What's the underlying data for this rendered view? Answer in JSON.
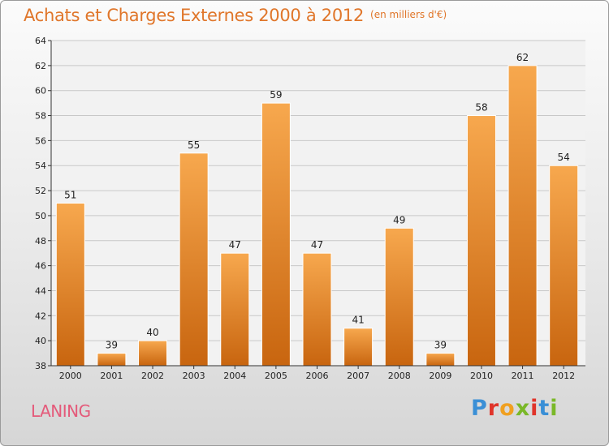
{
  "header": {
    "title": "Achats et Charges Externes 2000 à 2012",
    "unit": "(en milliers d'€)"
  },
  "footer": {
    "commune": "LANING",
    "logo_letters": [
      "P",
      "r",
      "o",
      "x",
      "i",
      "t",
      "i"
    ]
  },
  "colors": {
    "bar_top": "#f7a84e",
    "bar_bottom": "#c8650f",
    "title": "#e0762a",
    "commune": "#e45a7a",
    "logo": [
      "#3a8fd6",
      "#e0342a",
      "#f0a020",
      "#7ab828",
      "#e0342a",
      "#3a8fd6",
      "#7ab828"
    ]
  },
  "chart_data": {
    "type": "bar",
    "title": "Achats et Charges Externes 2000 à 2012",
    "subtitle": "(en milliers d'€)",
    "categories": [
      "2000",
      "2001",
      "2002",
      "2003",
      "2004",
      "2005",
      "2006",
      "2007",
      "2008",
      "2009",
      "2010",
      "2011",
      "2012"
    ],
    "values": [
      51,
      39,
      40,
      55,
      47,
      59,
      47,
      41,
      49,
      39,
      58,
      62,
      54
    ],
    "ylim": [
      38,
      64
    ],
    "yticks": [
      38,
      40,
      42,
      44,
      46,
      48,
      50,
      52,
      54,
      56,
      58,
      60,
      62,
      64
    ],
    "grid": true,
    "data_labels": true
  }
}
